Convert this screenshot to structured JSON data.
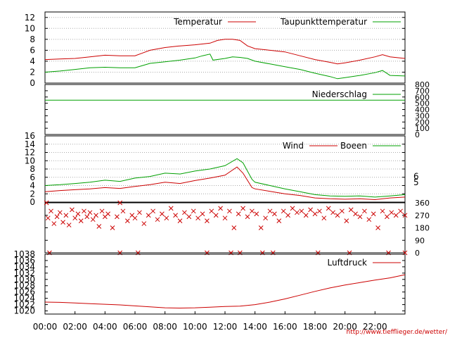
{
  "footer": "http://www.tiefflieger.de/wetter/",
  "colors": {
    "red": "#cc0000",
    "green": "#00a000",
    "grid": "#aaaaaa",
    "axis": "#000000"
  },
  "chart_data": [
    {
      "type": "line",
      "panel": "temperature",
      "y_ticks": [
        "0",
        "2",
        "4",
        "6",
        "8",
        "10",
        "12"
      ],
      "ylim": [
        0,
        13
      ],
      "grid": true,
      "legend_position": "top-right",
      "series": [
        {
          "name": "Temperatur",
          "color": "#cc0000",
          "points": [
            [
              0,
              4.3
            ],
            [
              1,
              4.4
            ],
            [
              2,
              4.5
            ],
            [
              3,
              4.8
            ],
            [
              4,
              5.1
            ],
            [
              5,
              5.0
            ],
            [
              6,
              5.0
            ],
            [
              6.5,
              5.5
            ],
            [
              7,
              6.0
            ],
            [
              8,
              6.5
            ],
            [
              9,
              6.8
            ],
            [
              10,
              7.0
            ],
            [
              11,
              7.3
            ],
            [
              11.5,
              7.8
            ],
            [
              12,
              8.0
            ],
            [
              12.5,
              8.0
            ],
            [
              13,
              7.8
            ],
            [
              13.5,
              6.8
            ],
            [
              14,
              6.3
            ],
            [
              15,
              6.0
            ],
            [
              16,
              5.7
            ],
            [
              17,
              5.0
            ],
            [
              18,
              4.3
            ],
            [
              19,
              3.8
            ],
            [
              19.5,
              3.5
            ],
            [
              20,
              3.7
            ],
            [
              21,
              4.2
            ],
            [
              22,
              4.8
            ],
            [
              22.5,
              5.2
            ],
            [
              23,
              4.8
            ],
            [
              24,
              4.5
            ]
          ]
        },
        {
          "name": "Taupunkttemperatur",
          "color": "#00a000",
          "points": [
            [
              0,
              2.0
            ],
            [
              1,
              2.2
            ],
            [
              2,
              2.5
            ],
            [
              3,
              2.8
            ],
            [
              4,
              2.9
            ],
            [
              5,
              2.8
            ],
            [
              6,
              2.8
            ],
            [
              6.5,
              3.2
            ],
            [
              7,
              3.6
            ],
            [
              8,
              3.9
            ],
            [
              9,
              4.2
            ],
            [
              10,
              4.6
            ],
            [
              10.5,
              5.0
            ],
            [
              11,
              5.3
            ],
            [
              11.2,
              4.2
            ],
            [
              12,
              4.5
            ],
            [
              12.5,
              4.8
            ],
            [
              13,
              4.7
            ],
            [
              13.5,
              4.5
            ],
            [
              14,
              4.0
            ],
            [
              15,
              3.5
            ],
            [
              16,
              3.0
            ],
            [
              17,
              2.5
            ],
            [
              18,
              1.8
            ],
            [
              19,
              1.2
            ],
            [
              19.5,
              0.8
            ],
            [
              20,
              1.0
            ],
            [
              21,
              1.4
            ],
            [
              22,
              1.9
            ],
            [
              22.5,
              2.3
            ],
            [
              23,
              1.4
            ],
            [
              24,
              1.3
            ]
          ]
        }
      ]
    },
    {
      "type": "line",
      "panel": "precipitation",
      "y_ticks": [
        "0",
        "100",
        "200",
        "300",
        "400",
        "500",
        "600",
        "700",
        "800"
      ],
      "ylim": [
        0,
        800
      ],
      "series": [
        {
          "name": "Niederschlag",
          "color": "#00a000",
          "points": [
            [
              0,
              550
            ],
            [
              24,
              550
            ]
          ]
        }
      ]
    },
    {
      "type": "line",
      "panel": "wind",
      "y_ticks": [
        "0",
        "2",
        "4",
        "6",
        "8",
        "10",
        "12",
        "14",
        "16"
      ],
      "ylim": [
        0,
        16
      ],
      "right_ticks": [
        [
          "5",
          4.8
        ],
        [
          "6",
          6.2
        ]
      ],
      "grid": true,
      "legend_position": "top-right",
      "series": [
        {
          "name": "Wind",
          "color": "#cc0000",
          "points": [
            [
              0,
              2.5
            ],
            [
              1,
              2.8
            ],
            [
              2,
              3.0
            ],
            [
              3,
              3.2
            ],
            [
              4,
              3.5
            ],
            [
              5,
              3.3
            ],
            [
              6,
              3.8
            ],
            [
              7,
              4.2
            ],
            [
              8,
              4.8
            ],
            [
              9,
              4.5
            ],
            [
              10,
              5.2
            ],
            [
              11,
              5.8
            ],
            [
              12,
              6.5
            ],
            [
              12.8,
              8.5
            ],
            [
              13.2,
              7.0
            ],
            [
              13.8,
              3.5
            ],
            [
              14,
              3.2
            ],
            [
              15,
              2.6
            ],
            [
              16,
              2.0
            ],
            [
              17,
              1.6
            ],
            [
              18,
              1.0
            ],
            [
              19,
              0.8
            ],
            [
              20,
              0.7
            ],
            [
              21,
              0.8
            ],
            [
              22,
              0.6
            ],
            [
              23,
              1.0
            ],
            [
              24,
              1.2
            ]
          ]
        },
        {
          "name": "Boeen",
          "color": "#00a000",
          "points": [
            [
              0,
              4.0
            ],
            [
              1,
              4.2
            ],
            [
              2,
              4.5
            ],
            [
              3,
              4.8
            ],
            [
              4,
              5.3
            ],
            [
              5,
              5.0
            ],
            [
              6,
              5.8
            ],
            [
              7,
              6.2
            ],
            [
              8,
              7.0
            ],
            [
              9,
              6.8
            ],
            [
              10,
              7.5
            ],
            [
              11,
              8.0
            ],
            [
              12,
              8.8
            ],
            [
              12.8,
              10.5
            ],
            [
              13.2,
              9.5
            ],
            [
              13.8,
              5.5
            ],
            [
              14,
              4.8
            ],
            [
              15,
              4.0
            ],
            [
              16,
              3.2
            ],
            [
              17,
              2.5
            ],
            [
              18,
              1.8
            ],
            [
              19,
              1.5
            ],
            [
              20,
              1.4
            ],
            [
              21,
              1.5
            ],
            [
              22,
              1.2
            ],
            [
              23,
              1.5
            ],
            [
              24,
              1.8
            ]
          ]
        }
      ]
    },
    {
      "type": "scatter",
      "panel": "wind-direction",
      "y_ticks": [
        "0",
        "90",
        "180",
        "270",
        "360"
      ],
      "ylim": [
        0,
        360
      ],
      "marker": "x",
      "color": "#cc0000",
      "points": [
        [
          0.1,
          360
        ],
        [
          0.2,
          250
        ],
        [
          0.4,
          300
        ],
        [
          0.6,
          210
        ],
        [
          0.8,
          260
        ],
        [
          1.0,
          290
        ],
        [
          1.2,
          220
        ],
        [
          1.4,
          270
        ],
        [
          1.6,
          200
        ],
        [
          1.8,
          310
        ],
        [
          2.0,
          250
        ],
        [
          2.2,
          280
        ],
        [
          2.4,
          230
        ],
        [
          2.6,
          300
        ],
        [
          2.8,
          260
        ],
        [
          3.0,
          290
        ],
        [
          3.2,
          240
        ],
        [
          3.4,
          270
        ],
        [
          3.6,
          190
        ],
        [
          3.8,
          300
        ],
        [
          4.0,
          260
        ],
        [
          4.2,
          280
        ],
        [
          4.5,
          180
        ],
        [
          4.8,
          260
        ],
        [
          5.0,
          360
        ],
        [
          5.2,
          300
        ],
        [
          5.5,
          230
        ],
        [
          5.8,
          270
        ],
        [
          6.0,
          250
        ],
        [
          6.3,
          290
        ],
        [
          6.6,
          210
        ],
        [
          6.9,
          270
        ],
        [
          7.2,
          300
        ],
        [
          7.5,
          240
        ],
        [
          7.8,
          280
        ],
        [
          8.1,
          250
        ],
        [
          8.4,
          320
        ],
        [
          8.7,
          270
        ],
        [
          9.0,
          230
        ],
        [
          9.3,
          290
        ],
        [
          9.6,
          260
        ],
        [
          9.9,
          300
        ],
        [
          10.2,
          250
        ],
        [
          10.5,
          280
        ],
        [
          10.8,
          230
        ],
        [
          11.1,
          300
        ],
        [
          11.4,
          270
        ],
        [
          11.7,
          320
        ],
        [
          12.0,
          250
        ],
        [
          12.3,
          300
        ],
        [
          12.6,
          180
        ],
        [
          12.9,
          280
        ],
        [
          13.2,
          320
        ],
        [
          13.5,
          260
        ],
        [
          13.8,
          300
        ],
        [
          14.1,
          280
        ],
        [
          14.4,
          180
        ],
        [
          14.7,
          250
        ],
        [
          15.0,
          300
        ],
        [
          15.3,
          280
        ],
        [
          15.6,
          230
        ],
        [
          15.9,
          300
        ],
        [
          16.2,
          270
        ],
        [
          16.5,
          320
        ],
        [
          16.8,
          290
        ],
        [
          17.1,
          300
        ],
        [
          17.4,
          270
        ],
        [
          17.7,
          310
        ],
        [
          18.0,
          280
        ],
        [
          18.3,
          300
        ],
        [
          18.6,
          250
        ],
        [
          18.9,
          320
        ],
        [
          19.2,
          290
        ],
        [
          19.5,
          270
        ],
        [
          19.8,
          300
        ],
        [
          20.1,
          230
        ],
        [
          20.4,
          310
        ],
        [
          20.7,
          280
        ],
        [
          21.0,
          260
        ],
        [
          21.3,
          300
        ],
        [
          21.6,
          240
        ],
        [
          21.9,
          280
        ],
        [
          22.2,
          180
        ],
        [
          22.5,
          300
        ],
        [
          22.8,
          260
        ],
        [
          23.1,
          290
        ],
        [
          23.4,
          270
        ],
        [
          23.7,
          300
        ],
        [
          24.0,
          270
        ],
        [
          0.3,
          0
        ],
        [
          5.0,
          0
        ],
        [
          6.2,
          0
        ],
        [
          10.8,
          0
        ],
        [
          12.4,
          0
        ],
        [
          13.0,
          0
        ],
        [
          14.5,
          0
        ],
        [
          15.2,
          0
        ],
        [
          18.2,
          0
        ],
        [
          20.3,
          0
        ],
        [
          22.9,
          0
        ],
        [
          24.0,
          0
        ]
      ]
    },
    {
      "type": "line",
      "panel": "pressure",
      "y_ticks": [
        "1020",
        "1022",
        "1024",
        "1026",
        "1028",
        "1030",
        "1032",
        "1034",
        "1036",
        "1038"
      ],
      "ylim": [
        1019,
        1038
      ],
      "x_ticks": [
        "00:00",
        "02:00",
        "04:00",
        "06:00",
        "08:00",
        "10:00",
        "12:00",
        "14:00",
        "16:00",
        "18:00",
        "20:00",
        "22:00"
      ],
      "xlim": [
        0,
        24
      ],
      "legend_position": "top-right",
      "series": [
        {
          "name": "Luftdruck",
          "color": "#cc0000",
          "points": [
            [
              0,
              1022.8
            ],
            [
              1,
              1022.7
            ],
            [
              2,
              1022.5
            ],
            [
              3,
              1022.3
            ],
            [
              4,
              1022.1
            ],
            [
              5,
              1021.9
            ],
            [
              6,
              1021.6
            ],
            [
              7,
              1021.3
            ],
            [
              8,
              1021.0
            ],
            [
              9,
              1020.9
            ],
            [
              10,
              1021.0
            ],
            [
              11,
              1021.2
            ],
            [
              12,
              1021.4
            ],
            [
              13,
              1021.5
            ],
            [
              14,
              1022.0
            ],
            [
              15,
              1022.8
            ],
            [
              16,
              1023.8
            ],
            [
              17,
              1025.0
            ],
            [
              18,
              1026.2
            ],
            [
              19,
              1027.3
            ],
            [
              20,
              1028.2
            ],
            [
              21,
              1029.0
            ],
            [
              22,
              1029.8
            ],
            [
              23,
              1030.5
            ],
            [
              24,
              1031.5
            ]
          ]
        }
      ]
    }
  ]
}
